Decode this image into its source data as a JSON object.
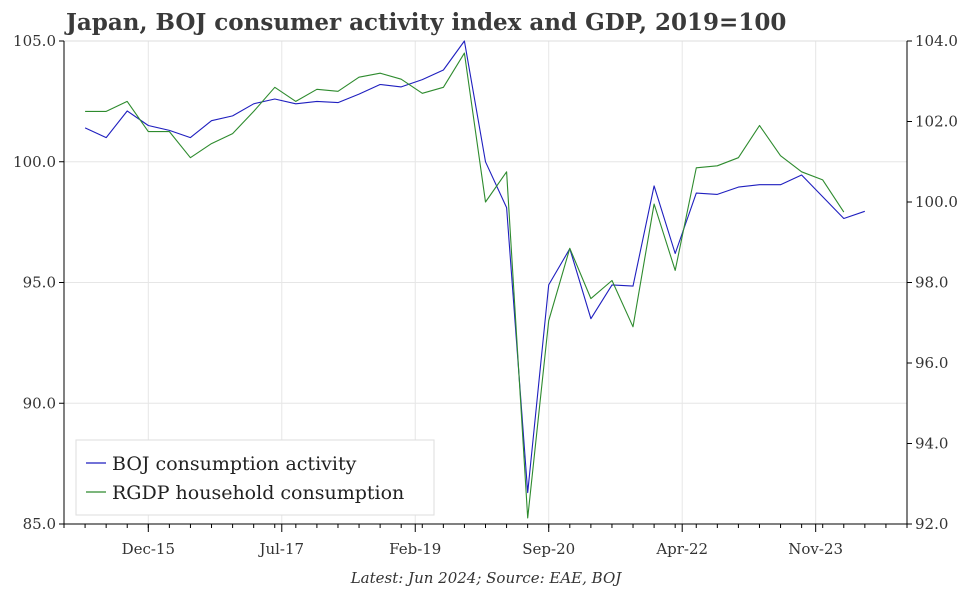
{
  "chart_data": {
    "type": "line",
    "title": "Japan, BOJ consumer activity index and GDP, 2019=100",
    "caption": "Latest: Jun 2024; Source: EAE, BOJ",
    "x_ticks": [
      {
        "date": "2015-12",
        "label": "Dec-15"
      },
      {
        "date": "2017-07",
        "label": "Jul-17"
      },
      {
        "date": "2019-02",
        "label": "Feb-19"
      },
      {
        "date": "2020-09",
        "label": "Sep-20"
      },
      {
        "date": "2022-04",
        "label": "Apr-22"
      },
      {
        "date": "2023-11",
        "label": "Nov-23"
      }
    ],
    "xlim": [
      "2014-12",
      "2024-12"
    ],
    "y_left": {
      "ylim": [
        85,
        105
      ],
      "ticks": [
        "85.0",
        "90.0",
        "95.0",
        "100.0",
        "105.0"
      ]
    },
    "y_right": {
      "ylim": [
        92,
        104
      ],
      "ticks": [
        "92.0",
        "94.0",
        "96.0",
        "98.0",
        "100.0",
        "102.0",
        "104.0"
      ]
    },
    "grid": true,
    "legend": "bottom-left",
    "series": [
      {
        "name": "BOJ consumption activity",
        "axis": "left",
        "color": "#1f1fbf",
        "points": [
          [
            "2015-03",
            101.4
          ],
          [
            "2015-06",
            101.0
          ],
          [
            "2015-09",
            102.1
          ],
          [
            "2015-12",
            101.5
          ],
          [
            "2016-03",
            101.3
          ],
          [
            "2016-06",
            101.0
          ],
          [
            "2016-09",
            101.7
          ],
          [
            "2016-12",
            101.9
          ],
          [
            "2017-03",
            102.4
          ],
          [
            "2017-06",
            102.6
          ],
          [
            "2017-09",
            102.4
          ],
          [
            "2017-12",
            102.5
          ],
          [
            "2018-03",
            102.45
          ],
          [
            "2018-06",
            102.8
          ],
          [
            "2018-09",
            103.2
          ],
          [
            "2018-12",
            103.1
          ],
          [
            "2019-03",
            103.4
          ],
          [
            "2019-06",
            103.8
          ],
          [
            "2019-09",
            105.0
          ],
          [
            "2019-12",
            100.0
          ],
          [
            "2020-03",
            98.1
          ],
          [
            "2020-06",
            86.3
          ],
          [
            "2020-09",
            94.9
          ],
          [
            "2020-12",
            96.4
          ],
          [
            "2021-03",
            93.5
          ],
          [
            "2021-06",
            94.9
          ],
          [
            "2021-09",
            94.85
          ],
          [
            "2021-12",
            99.0
          ],
          [
            "2022-03",
            96.2
          ],
          [
            "2022-06",
            98.7
          ],
          [
            "2022-09",
            98.65
          ],
          [
            "2022-12",
            98.95
          ],
          [
            "2023-03",
            99.05
          ],
          [
            "2023-06",
            99.05
          ],
          [
            "2023-09",
            99.45
          ],
          [
            "2023-12",
            98.55
          ],
          [
            "2024-03",
            97.65
          ],
          [
            "2024-06",
            97.95
          ]
        ]
      },
      {
        "name": "RGDP household consumption",
        "axis": "right",
        "color": "#2e8b2e",
        "points": [
          [
            "2015-03",
            102.25
          ],
          [
            "2015-06",
            102.25
          ],
          [
            "2015-09",
            102.5
          ],
          [
            "2015-12",
            101.75
          ],
          [
            "2016-03",
            101.75
          ],
          [
            "2016-06",
            101.1
          ],
          [
            "2016-09",
            101.45
          ],
          [
            "2016-12",
            101.7
          ],
          [
            "2017-03",
            102.25
          ],
          [
            "2017-06",
            102.85
          ],
          [
            "2017-09",
            102.5
          ],
          [
            "2017-12",
            102.8
          ],
          [
            "2018-03",
            102.75
          ],
          [
            "2018-06",
            103.1
          ],
          [
            "2018-09",
            103.2
          ],
          [
            "2018-12",
            103.05
          ],
          [
            "2019-03",
            102.7
          ],
          [
            "2019-06",
            102.85
          ],
          [
            "2019-09",
            103.7
          ],
          [
            "2019-12",
            100.0
          ],
          [
            "2020-03",
            100.75
          ],
          [
            "2020-06",
            92.15
          ],
          [
            "2020-09",
            97.05
          ],
          [
            "2020-12",
            98.85
          ],
          [
            "2021-03",
            97.6
          ],
          [
            "2021-06",
            98.05
          ],
          [
            "2021-09",
            96.9
          ],
          [
            "2021-12",
            99.95
          ],
          [
            "2022-03",
            98.3
          ],
          [
            "2022-06",
            100.85
          ],
          [
            "2022-09",
            100.9
          ],
          [
            "2022-12",
            101.1
          ],
          [
            "2023-03",
            101.9
          ],
          [
            "2023-06",
            101.15
          ],
          [
            "2023-09",
            100.75
          ],
          [
            "2023-12",
            100.55
          ],
          [
            "2024-03",
            99.75
          ]
        ]
      }
    ]
  }
}
